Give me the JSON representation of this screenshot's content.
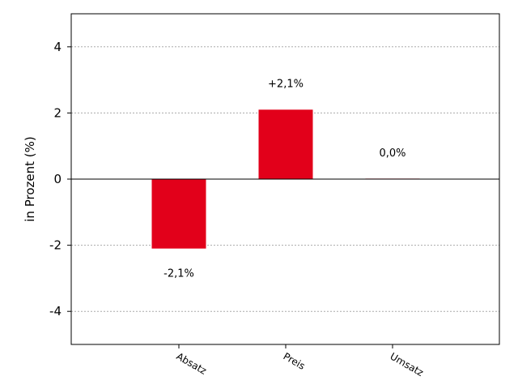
{
  "chart_data": {
    "type": "bar",
    "categories": [
      "Absatz",
      "Preis",
      "Umsatz"
    ],
    "values": [
      -2.1,
      2.1,
      0.0
    ],
    "data_labels": [
      "-2,1%",
      "+2,1%",
      "0,0%"
    ],
    "ylabel": "in Prozent (%)",
    "ylim": [
      -5,
      5
    ],
    "yticks": [
      -4,
      -2,
      0,
      2,
      4
    ],
    "ytick_labels": [
      "-4",
      "-2",
      "0",
      "2",
      "4"
    ],
    "grid": "horizontal dotted",
    "bar_color": "#e2001a",
    "zero_bar_color": "#f7c6cc"
  }
}
